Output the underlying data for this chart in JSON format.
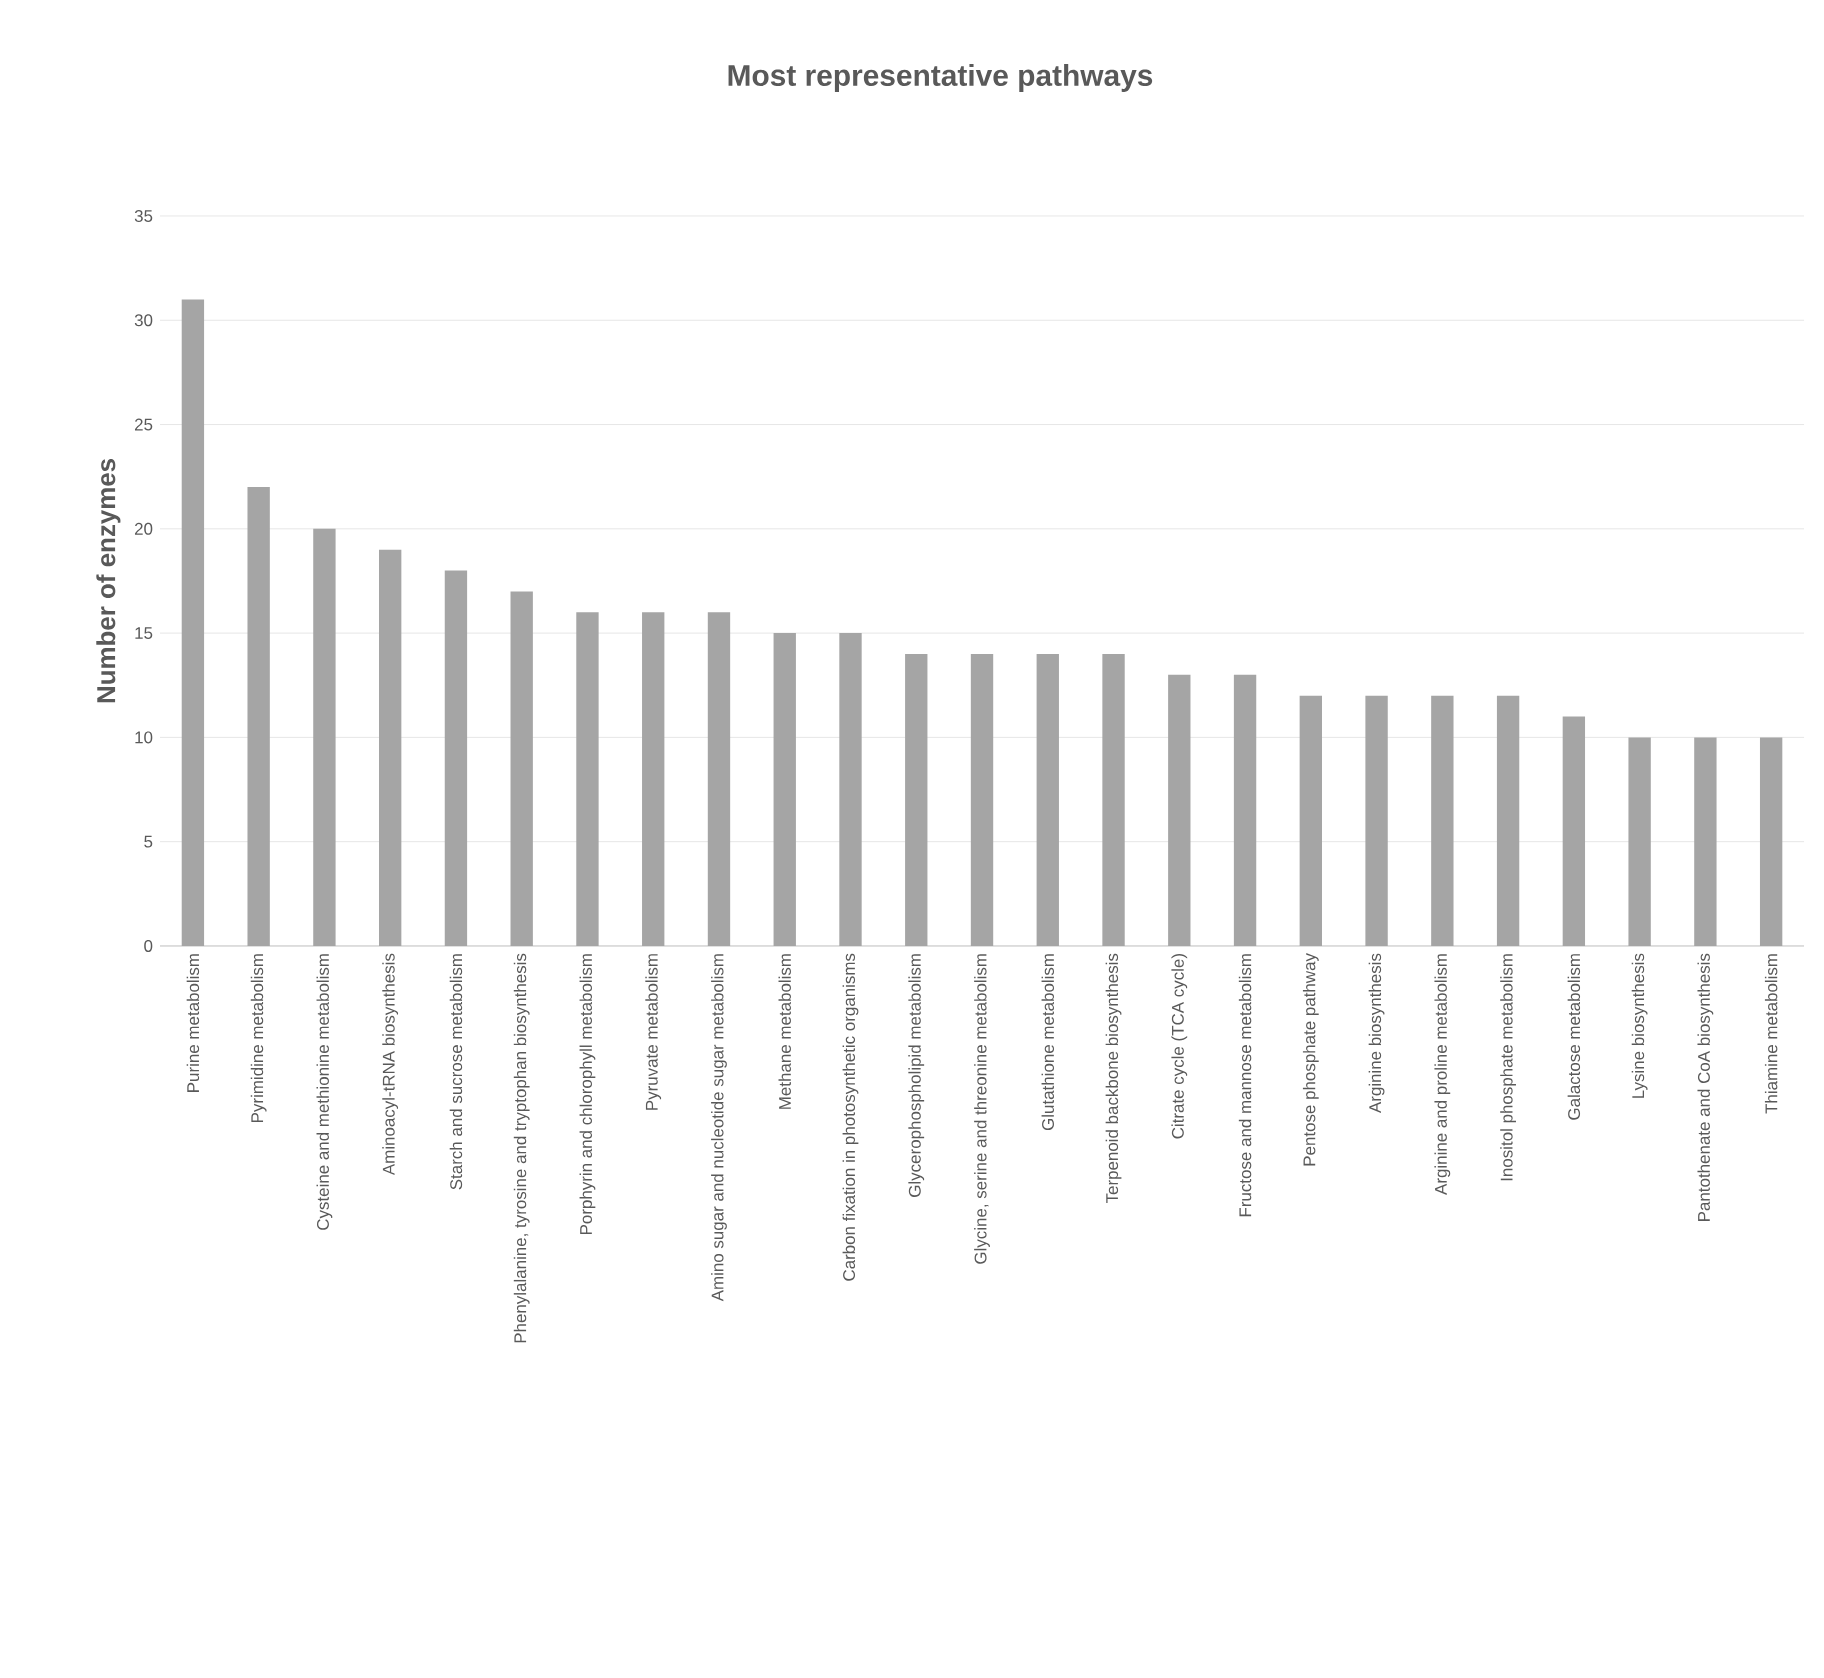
{
  "chart_data": {
    "type": "bar",
    "title": "Most representative pathways",
    "ylabel": "Number of enzymes",
    "categories": [
      "Purine metabolism",
      "Pyrimidine metabolism",
      "Cysteine and methionine metabolism",
      "Aminoacyl-tRNA biosynthesis",
      "Starch and sucrose metabolism",
      "Phenylalanine, tyrosine and tryptophan biosynthesis",
      "Porphyrin and chlorophyll metabolism",
      "Pyruvate metabolism",
      "Amino sugar and nucleotide sugar metabolism",
      "Methane metabolism",
      "Carbon fixation in photosynthetic organisms",
      "Glycerophospholipid metabolism",
      "Glycine, serine and threonine metabolism",
      "Glutathione metabolism",
      "Terpenoid backbone biosynthesis",
      "Citrate cycle (TCA cycle)",
      "Fructose and mannose metabolism",
      "Pentose phosphate pathway",
      "Arginine biosynthesis",
      "Arginine and proline metabolism",
      "Inositol phosphate metabolism",
      "Galactose metabolism",
      "Lysine biosynthesis",
      "Pantothenate and CoA biosynthesis",
      "Thiamine metabolism"
    ],
    "values": [
      31,
      22,
      20,
      19,
      18,
      17,
      16,
      16,
      16,
      15,
      15,
      14,
      14,
      14,
      14,
      13,
      13,
      12,
      12,
      12,
      12,
      11,
      10,
      10,
      10
    ],
    "color": "#a5a5a5",
    "ylim": [
      0,
      35
    ],
    "yticks": [
      0,
      5,
      10,
      15,
      20,
      25,
      30,
      35
    ],
    "grid": "y"
  }
}
